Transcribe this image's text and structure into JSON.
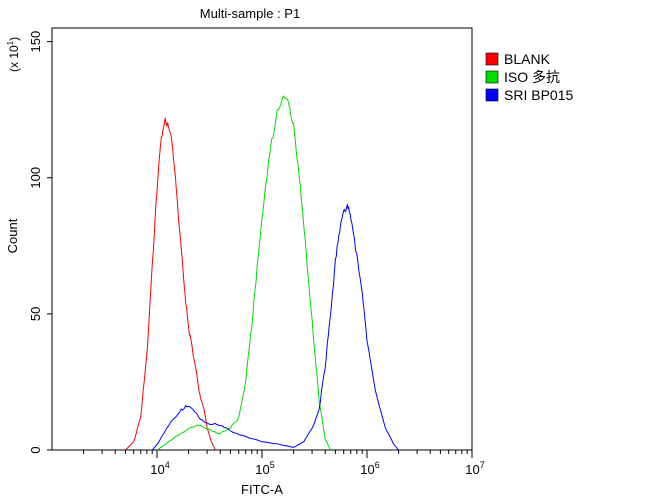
{
  "chart_data": {
    "type": "line",
    "title": "Multi-sample : P1",
    "xlabel": "FITC-A",
    "ylabel": "Count",
    "y_scale_label": "(x 10",
    "y_scale_exp": "1",
    "y_scale_close": ")",
    "x_scale": "log",
    "xlim": [
      1000,
      10000000
    ],
    "ylim": [
      0,
      155
    ],
    "y_ticks": [
      0,
      50,
      100,
      150
    ],
    "y_tick_labels": [
      "0",
      "50",
      "100",
      "150"
    ],
    "x_ticks": [
      10000,
      100000,
      1000000,
      10000000
    ],
    "x_tick_labels": [
      {
        "base": "10",
        "exp": "4"
      },
      {
        "base": "10",
        "exp": "5"
      },
      {
        "base": "10",
        "exp": "6"
      },
      {
        "base": "10",
        "exp": "7"
      }
    ],
    "grid": false,
    "legend_position": "top-right",
    "series": [
      {
        "name": "BLANK",
        "color": "#ff0000",
        "points": [
          [
            5000,
            0
          ],
          [
            6000,
            3
          ],
          [
            7000,
            12
          ],
          [
            8000,
            35
          ],
          [
            9000,
            68
          ],
          [
            10000,
            95
          ],
          [
            11000,
            115
          ],
          [
            12000,
            122
          ],
          [
            13000,
            118
          ],
          [
            14000,
            112
          ],
          [
            15000,
            100
          ],
          [
            16000,
            85
          ],
          [
            18000,
            62
          ],
          [
            20000,
            45
          ],
          [
            22000,
            35
          ],
          [
            25000,
            22
          ],
          [
            28000,
            15
          ],
          [
            30000,
            8
          ],
          [
            33000,
            3
          ],
          [
            36000,
            0
          ]
        ]
      },
      {
        "name": "ISO 多抗",
        "color": "#00dd00",
        "points": [
          [
            10000,
            0
          ],
          [
            12000,
            2
          ],
          [
            15000,
            5
          ],
          [
            20000,
            8
          ],
          [
            25000,
            9
          ],
          [
            30000,
            8
          ],
          [
            40000,
            6
          ],
          [
            50000,
            8
          ],
          [
            60000,
            12
          ],
          [
            70000,
            25
          ],
          [
            80000,
            45
          ],
          [
            90000,
            68
          ],
          [
            100000,
            85
          ],
          [
            120000,
            110
          ],
          [
            140000,
            125
          ],
          [
            160000,
            130
          ],
          [
            180000,
            127
          ],
          [
            200000,
            120
          ],
          [
            220000,
            105
          ],
          [
            250000,
            82
          ],
          [
            300000,
            48
          ],
          [
            350000,
            18
          ],
          [
            400000,
            4
          ],
          [
            450000,
            0
          ]
        ]
      },
      {
        "name": "SRI BP015",
        "color": "#0000ff",
        "points": [
          [
            9000,
            0
          ],
          [
            10000,
            2
          ],
          [
            12000,
            7
          ],
          [
            14000,
            11
          ],
          [
            17000,
            15
          ],
          [
            20000,
            16
          ],
          [
            25000,
            12
          ],
          [
            30000,
            10
          ],
          [
            40000,
            9
          ],
          [
            50000,
            7
          ],
          [
            70000,
            5
          ],
          [
            100000,
            3
          ],
          [
            150000,
            2
          ],
          [
            200000,
            1
          ],
          [
            250000,
            3
          ],
          [
            300000,
            8
          ],
          [
            350000,
            15
          ],
          [
            400000,
            30
          ],
          [
            450000,
            50
          ],
          [
            500000,
            70
          ],
          [
            550000,
            80
          ],
          [
            600000,
            88
          ],
          [
            650000,
            90
          ],
          [
            700000,
            85
          ],
          [
            800000,
            72
          ],
          [
            900000,
            58
          ],
          [
            1000000,
            40
          ],
          [
            1200000,
            22
          ],
          [
            1500000,
            8
          ],
          [
            1800000,
            2
          ],
          [
            2000000,
            0
          ]
        ]
      }
    ]
  }
}
